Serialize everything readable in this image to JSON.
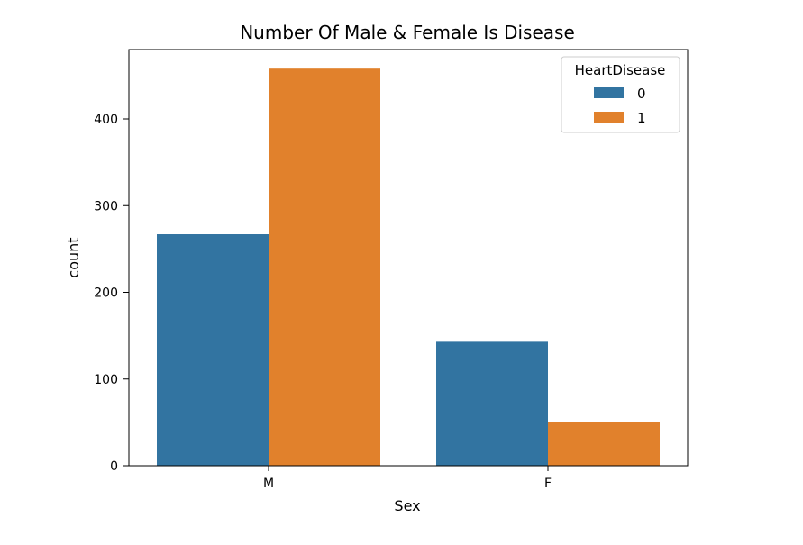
{
  "chart_data": {
    "type": "bar",
    "title": "Number Of Male & Female Is Disease",
    "xlabel": "Sex",
    "ylabel": "count",
    "categories": [
      "M",
      "F"
    ],
    "ylim": [
      0,
      480
    ],
    "yticks": [
      0,
      100,
      200,
      300,
      400
    ],
    "legend": {
      "title": "HeartDisease",
      "placement": "top-right"
    },
    "series": [
      {
        "name": "0",
        "color": "#3274a1",
        "values": [
          267,
          143
        ]
      },
      {
        "name": "1",
        "color": "#e1812c",
        "values": [
          458,
          50
        ]
      }
    ]
  }
}
